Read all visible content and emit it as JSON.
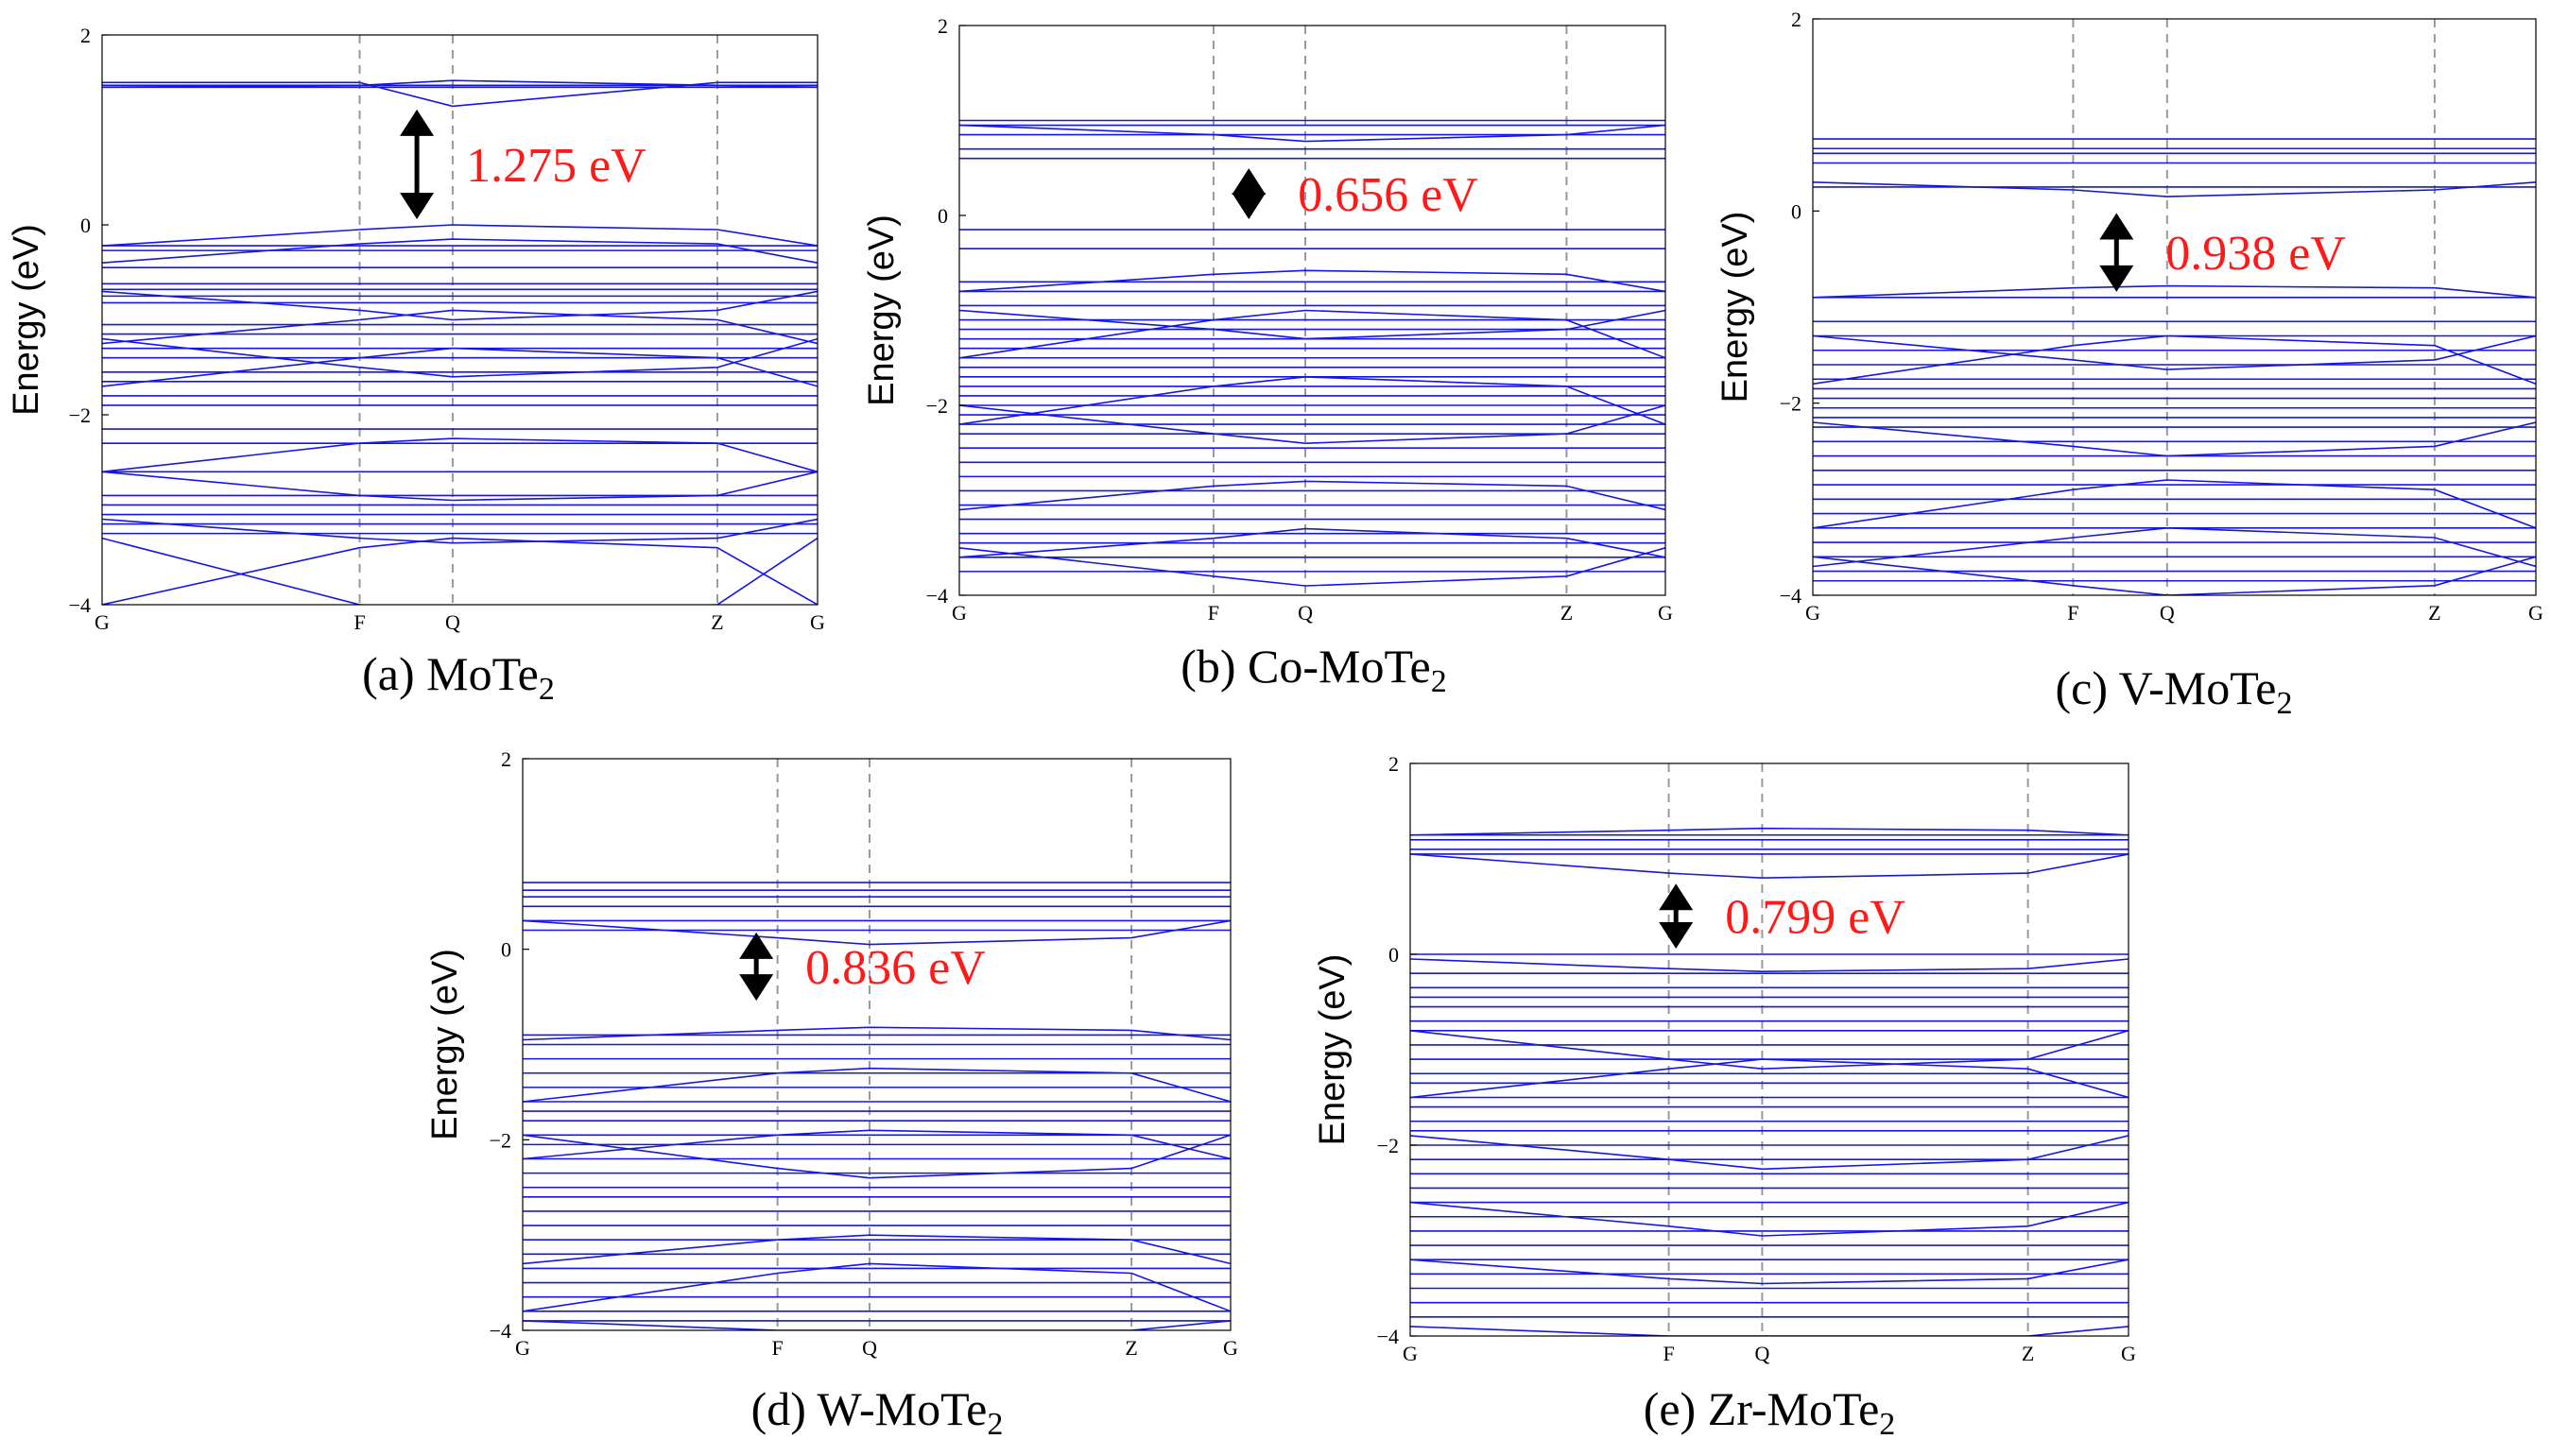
{
  "colors": {
    "band": "#1515e8",
    "gap_label": "#ff1a1a",
    "arrow": "#000000"
  },
  "chart_data": [
    {
      "type": "line",
      "panel": "a",
      "caption": "(a) MoTe",
      "caption_sub": "2",
      "ylabel": "Energy (eV)",
      "ylim": [
        -4,
        2
      ],
      "yticks": [
        2,
        0,
        -2,
        -4
      ],
      "ytick_labels": [
        "2",
        "0",
        "−2",
        "−4"
      ],
      "kpoints": [
        {
          "label": "G",
          "x": 0.0
        },
        {
          "label": "F",
          "x": 0.36
        },
        {
          "label": "Q",
          "x": 0.49
        },
        {
          "label": "Z",
          "x": 0.86
        },
        {
          "label": "G",
          "x": 1.0
        }
      ],
      "gap": {
        "label": "1.275 eV",
        "value": 1.275,
        "vbm": 0.0,
        "cbm": 1.275,
        "kx": 0.44
      },
      "bands_flat": [
        1.47,
        1.45,
        -0.22,
        -0.27,
        -0.45,
        -0.62,
        -0.68,
        -0.75,
        -0.82,
        -1.05,
        -1.15,
        -1.3,
        -1.4,
        -1.55,
        -1.65,
        -1.8,
        -1.9,
        -2.15,
        -2.3,
        -2.6,
        -2.85,
        -2.95,
        -3.05,
        -3.15,
        -3.25
      ],
      "bands_dispersive": [
        [
          1.45,
          1.47,
          1.52,
          1.47,
          1.45
        ],
        [
          1.5,
          1.5,
          1.25,
          1.5,
          1.5
        ],
        [
          -0.22,
          -0.05,
          0.0,
          -0.05,
          -0.22
        ],
        [
          -0.4,
          -0.2,
          -0.15,
          -0.2,
          -0.4
        ],
        [
          -0.7,
          -0.9,
          -1.0,
          -0.9,
          -0.7
        ],
        [
          -1.2,
          -1.5,
          -1.6,
          -1.5,
          -1.2
        ],
        [
          -1.25,
          -1.0,
          -0.9,
          -1.0,
          -1.25
        ],
        [
          -1.7,
          -1.4,
          -1.3,
          -1.4,
          -1.7
        ],
        [
          -2.6,
          -2.3,
          -2.25,
          -2.3,
          -2.6
        ],
        [
          -2.6,
          -2.85,
          -2.9,
          -2.85,
          -2.6
        ],
        [
          -3.1,
          -3.3,
          -3.35,
          -3.3,
          -3.1
        ],
        [
          -4.0,
          -3.4,
          -3.3,
          -3.4,
          -4.0
        ],
        [
          -3.3,
          -4.0,
          -4.1,
          -4.0,
          -3.3
        ]
      ]
    },
    {
      "type": "line",
      "panel": "b",
      "caption": "(b) Co-MoTe",
      "caption_sub": "2",
      "ylabel": "Energy (eV)",
      "ylim": [
        -4,
        2
      ],
      "yticks": [
        2,
        0,
        -2,
        -4
      ],
      "ytick_labels": [
        "2",
        "0",
        "−2",
        "−4"
      ],
      "kpoints": [
        {
          "label": "G",
          "x": 0.0
        },
        {
          "label": "F",
          "x": 0.36
        },
        {
          "label": "Q",
          "x": 0.49
        },
        {
          "label": "Z",
          "x": 0.86
        },
        {
          "label": "G",
          "x": 1.0
        }
      ],
      "gap": {
        "label": "0.656 eV",
        "value": 0.656,
        "vbm": -0.1,
        "cbm": 0.556,
        "kx": 0.41
      },
      "bands_flat": [
        1.0,
        0.95,
        0.85,
        0.7,
        0.6,
        -0.15,
        -0.35,
        -0.7,
        -0.8,
        -0.95,
        -1.1,
        -1.2,
        -1.3,
        -1.4,
        -1.5,
        -1.6,
        -1.7,
        -1.8,
        -1.9,
        -2.0,
        -2.1,
        -2.2,
        -2.3,
        -2.45,
        -2.6,
        -2.75,
        -2.9,
        -3.05,
        -3.2,
        -3.35,
        -3.45,
        -3.6,
        -3.75
      ],
      "bands_dispersive": [
        [
          0.95,
          0.85,
          0.78,
          0.85,
          0.95
        ],
        [
          -0.8,
          -0.62,
          -0.58,
          -0.62,
          -0.8
        ],
        [
          -1.0,
          -1.2,
          -1.3,
          -1.2,
          -1.0
        ],
        [
          -1.5,
          -1.1,
          -1.0,
          -1.1,
          -1.5
        ],
        [
          -2.0,
          -2.3,
          -2.4,
          -2.3,
          -2.0
        ],
        [
          -2.2,
          -1.8,
          -1.7,
          -1.8,
          -2.2
        ],
        [
          -3.1,
          -2.85,
          -2.8,
          -2.85,
          -3.1
        ],
        [
          -3.5,
          -3.8,
          -3.9,
          -3.8,
          -3.5
        ],
        [
          -3.6,
          -3.4,
          -3.3,
          -3.4,
          -3.6
        ]
      ]
    },
    {
      "type": "line",
      "panel": "c",
      "caption": "(c) V-MoTe",
      "caption_sub": "2",
      "ylabel": "Energy (eV)",
      "ylim": [
        -4,
        2
      ],
      "yticks": [
        2,
        0,
        -2,
        -4
      ],
      "ytick_labels": [
        "2",
        "0",
        "−2",
        "−4"
      ],
      "kpoints": [
        {
          "label": "G",
          "x": 0.0
        },
        {
          "label": "F",
          "x": 0.36
        },
        {
          "label": "Q",
          "x": 0.49
        },
        {
          "label": "Z",
          "x": 0.86
        },
        {
          "label": "G",
          "x": 1.0
        }
      ],
      "gap": {
        "label": "0.938 eV",
        "value": 0.938,
        "vbm": -0.9,
        "cbm": 0.038,
        "kx": 0.42
      },
      "bands_flat": [
        0.75,
        0.65,
        0.6,
        0.5,
        0.25,
        -0.9,
        -1.15,
        -1.3,
        -1.45,
        -1.6,
        -1.75,
        -1.85,
        -1.95,
        -2.05,
        -2.15,
        -2.25,
        -2.4,
        -2.55,
        -2.7,
        -2.85,
        -3.0,
        -3.15,
        -3.3,
        -3.45,
        -3.6,
        -3.75,
        -3.85
      ],
      "bands_dispersive": [
        [
          0.3,
          0.22,
          0.15,
          0.22,
          0.3
        ],
        [
          -0.9,
          -0.8,
          -0.78,
          -0.8,
          -0.9
        ],
        [
          -1.3,
          -1.55,
          -1.65,
          -1.55,
          -1.3
        ],
        [
          -1.8,
          -1.4,
          -1.3,
          -1.4,
          -1.8
        ],
        [
          -2.2,
          -2.45,
          -2.55,
          -2.45,
          -2.2
        ],
        [
          -3.3,
          -2.9,
          -2.8,
          -2.9,
          -3.3
        ],
        [
          -3.6,
          -3.9,
          -4.0,
          -3.9,
          -3.6
        ],
        [
          -3.7,
          -3.4,
          -3.3,
          -3.4,
          -3.7
        ]
      ]
    },
    {
      "type": "line",
      "panel": "d",
      "caption": "(d) W-MoTe",
      "caption_sub": "2",
      "ylabel": "Energy (eV)",
      "ylim": [
        -4,
        2
      ],
      "yticks": [
        2,
        0,
        -2,
        -4
      ],
      "ytick_labels": [
        "2",
        "0",
        "−2",
        "−4"
      ],
      "kpoints": [
        {
          "label": "G",
          "x": 0.0
        },
        {
          "label": "F",
          "x": 0.36
        },
        {
          "label": "Q",
          "x": 0.49
        },
        {
          "label": "Z",
          "x": 0.86
        },
        {
          "label": "G",
          "x": 1.0
        }
      ],
      "gap": {
        "label": "0.836 eV",
        "value": 0.836,
        "vbm": -0.6,
        "cbm": 0.236,
        "kx": 0.33
      },
      "bands_flat": [
        0.7,
        0.62,
        0.55,
        0.45,
        0.3,
        0.2,
        -0.9,
        -1.0,
        -1.15,
        -1.3,
        -1.45,
        -1.6,
        -1.7,
        -1.8,
        -1.95,
        -2.05,
        -2.2,
        -2.35,
        -2.5,
        -2.6,
        -2.75,
        -2.9,
        -3.05,
        -3.2,
        -3.35,
        -3.5,
        -3.65,
        -3.8,
        -3.9
      ],
      "bands_dispersive": [
        [
          0.3,
          0.12,
          0.05,
          0.12,
          0.3
        ],
        [
          -0.95,
          -0.85,
          -0.82,
          -0.85,
          -0.95
        ],
        [
          -1.6,
          -1.3,
          -1.25,
          -1.3,
          -1.6
        ],
        [
          -1.95,
          -2.3,
          -2.4,
          -2.3,
          -1.95
        ],
        [
          -2.2,
          -1.95,
          -1.9,
          -1.95,
          -2.2
        ],
        [
          -3.3,
          -3.05,
          -3.0,
          -3.05,
          -3.3
        ],
        [
          -3.8,
          -3.4,
          -3.3,
          -3.4,
          -3.8
        ],
        [
          -3.9,
          -4.0,
          -4.0,
          -4.0,
          -3.9
        ]
      ]
    },
    {
      "type": "line",
      "panel": "e",
      "caption": "(e) Zr-MoTe",
      "caption_sub": "2",
      "ylabel": "Energy (eV)",
      "ylim": [
        -4,
        2
      ],
      "yticks": [
        2,
        0,
        -2,
        -4
      ],
      "ytick_labels": [
        "2",
        "0",
        "−2",
        "−4"
      ],
      "kpoints": [
        {
          "label": "G",
          "x": 0.0
        },
        {
          "label": "F",
          "x": 0.36
        },
        {
          "label": "Q",
          "x": 0.49
        },
        {
          "label": "Z",
          "x": 0.86
        },
        {
          "label": "G",
          "x": 1.0
        }
      ],
      "gap": {
        "label": "0.799 eV",
        "value": 0.799,
        "vbm": 0.0,
        "cbm": 0.799,
        "kx": 0.37
      },
      "bands_flat": [
        1.25,
        1.2,
        1.1,
        1.05,
        0.0,
        -0.2,
        -0.35,
        -0.45,
        -0.55,
        -0.7,
        -0.8,
        -0.95,
        -1.1,
        -1.25,
        -1.35,
        -1.5,
        -1.6,
        -1.75,
        -1.85,
        -2.0,
        -2.15,
        -2.3,
        -2.45,
        -2.6,
        -2.75,
        -2.9,
        -3.05,
        -3.2,
        -3.35,
        -3.5,
        -3.65,
        -3.8
      ],
      "bands_dispersive": [
        [
          1.25,
          1.3,
          1.32,
          1.3,
          1.25
        ],
        [
          1.05,
          0.85,
          0.8,
          0.85,
          1.05
        ],
        [
          -0.05,
          -0.15,
          -0.18,
          -0.15,
          -0.05
        ],
        [
          -0.8,
          -1.1,
          -1.2,
          -1.1,
          -0.8
        ],
        [
          -1.5,
          -1.2,
          -1.1,
          -1.2,
          -1.5
        ],
        [
          -1.9,
          -2.15,
          -2.25,
          -2.15,
          -1.9
        ],
        [
          -2.6,
          -2.85,
          -2.95,
          -2.85,
          -2.6
        ],
        [
          -3.2,
          -3.4,
          -3.45,
          -3.4,
          -3.2
        ],
        [
          -3.9,
          -4.0,
          -4.0,
          -4.0,
          -3.9
        ]
      ]
    }
  ]
}
